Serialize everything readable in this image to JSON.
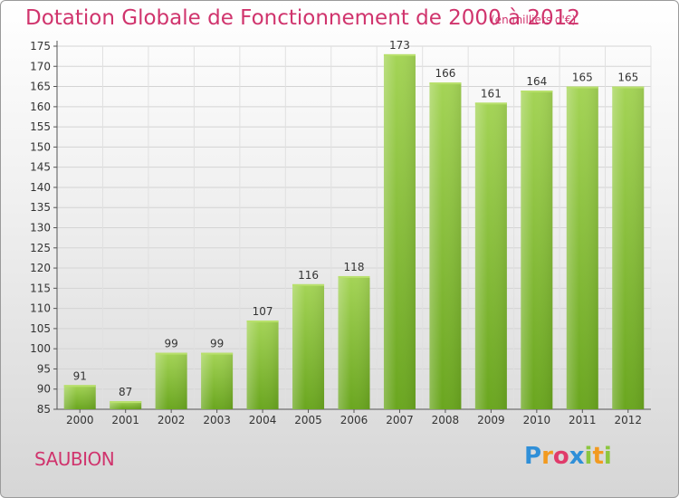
{
  "chart_data": {
    "type": "bar",
    "title": "Dotation Globale de Fonctionnement de 2000 à 2012",
    "unit_note": "(en milliers d'€)",
    "categories": [
      "2000",
      "2001",
      "2002",
      "2003",
      "2004",
      "2005",
      "2006",
      "2007",
      "2008",
      "2009",
      "2010",
      "2011",
      "2012"
    ],
    "values": [
      91,
      87,
      99,
      99,
      107,
      116,
      118,
      173,
      166,
      161,
      164,
      165,
      165
    ],
    "ylim": [
      85,
      175
    ],
    "ytick_step": 5,
    "grid": true,
    "bar_color": "#7ab82e",
    "bar_color_light": "#9ed04a",
    "title_color": "#d0346d"
  },
  "commune": "SAUBION",
  "logo": {
    "letters": [
      "P",
      "r",
      "o",
      "x",
      "i",
      "t",
      "i"
    ],
    "colors": [
      "#2f8fd8",
      "#f29a1f",
      "#e03b6a",
      "#2f8fd8",
      "#8cc63f",
      "#f29a1f",
      "#8cc63f"
    ]
  }
}
